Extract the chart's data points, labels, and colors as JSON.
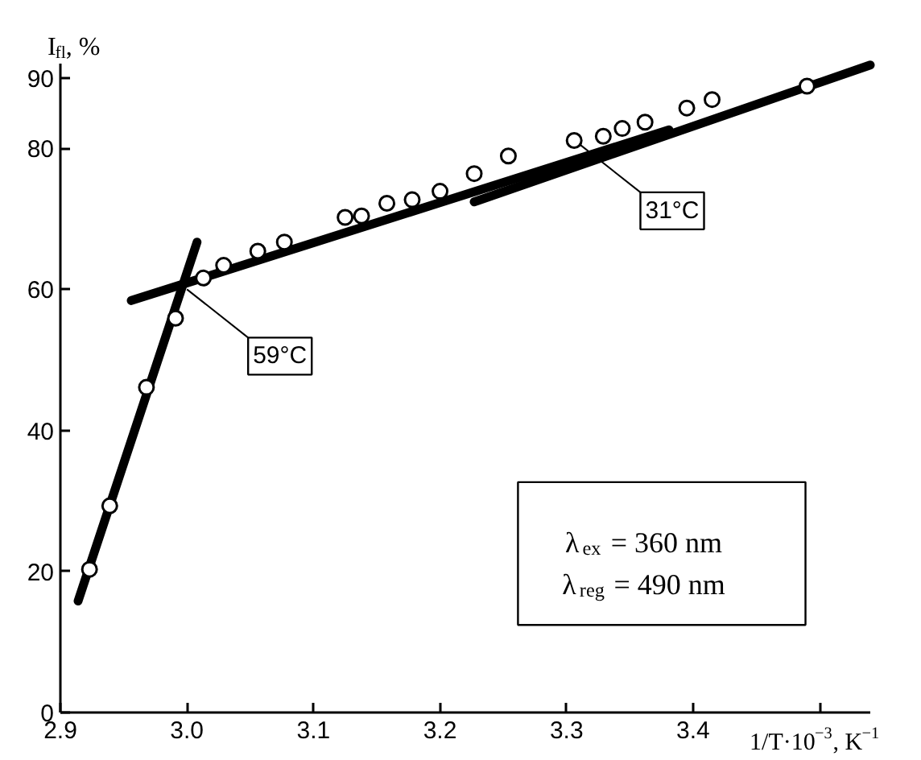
{
  "chart_data": {
    "type": "scatter",
    "xlabel": "1/T·10$^{−3}$, K$^{−1}$",
    "ylabel": "I$_{fl}$, %",
    "xlim": [
      2.9,
      3.54
    ],
    "ylim": [
      0,
      92
    ],
    "xticks": [
      2.9,
      {
        "value": 3.0,
        "label": "3.0"
      },
      3.1,
      3.2,
      3.3,
      3.4,
      {
        "value": 3.5,
        "label": null
      }
    ],
    "yticks": [
      0,
      20,
      40,
      60,
      80,
      90
    ],
    "grid": false,
    "series": [
      {
        "marker": "circle",
        "color": "#000000",
        "x": [
          2.923,
          2.939,
          2.968,
          2.991,
          3.013,
          3.029,
          3.056,
          3.077,
          3.125,
          3.138,
          3.158,
          3.178,
          3.2,
          3.227,
          3.254,
          3.306,
          3.329,
          3.344,
          3.362,
          3.395,
          3.415,
          3.49
        ],
        "values": [
          20.3,
          29.3,
          46.1,
          55.9,
          61.6,
          63.4,
          65.4,
          66.7,
          70.2,
          70.4,
          72.2,
          72.7,
          73.9,
          76.4,
          78.9,
          81.1,
          81.7,
          82.8,
          83.7,
          85.7,
          86.9,
          88.8
        ]
      },
      {
        "type": "line",
        "color": "#000000",
        "x": [
          2.914,
          3.008
        ],
        "values": [
          15.8,
          66.7
        ]
      },
      {
        "type": "line",
        "color": "#000000",
        "x": [
          2.956,
          3.381
        ],
        "values": [
          58.4,
          82.6
        ]
      },
      {
        "type": "line",
        "color": "#000000",
        "x": [
          3.227,
          3.54
        ],
        "values": [
          72.4,
          91.8
        ]
      }
    ],
    "annotations": [
      {
        "text": "59°C",
        "x": 3.0,
        "y": 60
      },
      {
        "text": "31°C",
        "x": 3.31,
        "y": 80.6
      },
      "λ$_{ex}$ = 360 nm\nλ$_{reg}$ = 490 nm"
    ]
  }
}
